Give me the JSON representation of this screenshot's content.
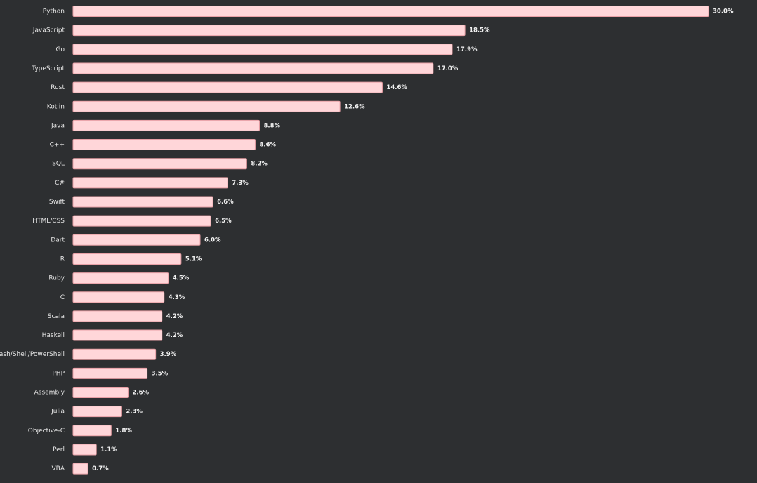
{
  "chart_data": {
    "type": "bar",
    "orientation": "horizontal",
    "categories": [
      "Python",
      "JavaScript",
      "Go",
      "TypeScript",
      "Rust",
      "Kotlin",
      "Java",
      "C++",
      "SQL",
      "C#",
      "Swift",
      "HTML/CSS",
      "Dart",
      "R",
      "Ruby",
      "C",
      "Scala",
      "Haskell",
      "Bash/Shell/PowerShell",
      "PHP",
      "Assembly",
      "Julia",
      "Objective-C",
      "Perl",
      "VBA"
    ],
    "values": [
      30.0,
      18.5,
      17.9,
      17.0,
      14.6,
      12.6,
      8.8,
      8.6,
      8.2,
      7.3,
      6.6,
      6.5,
      6.0,
      5.1,
      4.5,
      4.3,
      4.2,
      4.2,
      3.9,
      3.5,
      2.6,
      2.3,
      1.8,
      1.1,
      0.7
    ],
    "value_labels": [
      "30.0%",
      "18.5%",
      "17.9%",
      "17.0%",
      "14.6%",
      "12.6%",
      "8.8%",
      "8.6%",
      "8.2%",
      "7.3%",
      "6.6%",
      "6.5%",
      "6.0%",
      "5.1%",
      "4.5%",
      "4.3%",
      "4.2%",
      "4.2%",
      "3.9%",
      "3.5%",
      "2.6%",
      "2.3%",
      "1.8%",
      "1.1%",
      "0.7%"
    ],
    "xlim": [
      0,
      30
    ],
    "title": "",
    "xlabel": "",
    "ylabel": "",
    "grid": false,
    "bar_color": "#ffd6d9",
    "background_color": "#2d2f31"
  }
}
